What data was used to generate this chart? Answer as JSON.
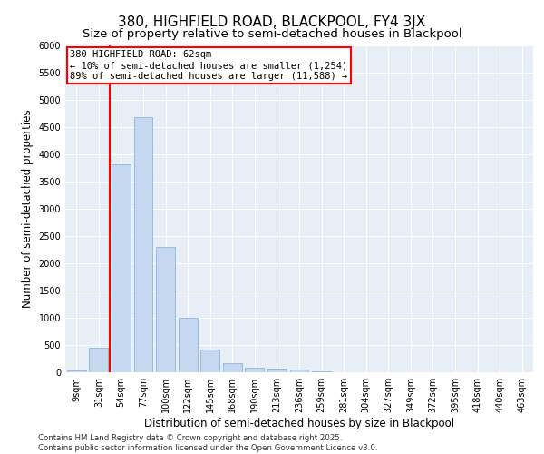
{
  "title1": "380, HIGHFIELD ROAD, BLACKPOOL, FY4 3JX",
  "title2": "Size of property relative to semi-detached houses in Blackpool",
  "xlabel": "Distribution of semi-detached houses by size in Blackpool",
  "ylabel": "Number of semi-detached properties",
  "categories": [
    "9sqm",
    "31sqm",
    "54sqm",
    "77sqm",
    "100sqm",
    "122sqm",
    "145sqm",
    "168sqm",
    "190sqm",
    "213sqm",
    "236sqm",
    "259sqm",
    "281sqm",
    "304sqm",
    "327sqm",
    "349sqm",
    "372sqm",
    "395sqm",
    "418sqm",
    "440sqm",
    "463sqm"
  ],
  "values": [
    30,
    450,
    3820,
    4680,
    2300,
    1000,
    420,
    175,
    90,
    65,
    55,
    10,
    0,
    0,
    0,
    0,
    0,
    0,
    0,
    0,
    0
  ],
  "bar_color": "#c5d8f0",
  "bar_edge_color": "#7bafd4",
  "vline_color": "red",
  "vline_pos": 1.5,
  "annotation_text": "380 HIGHFIELD ROAD: 62sqm\n← 10% of semi-detached houses are smaller (1,254)\n89% of semi-detached houses are larger (11,588) →",
  "annotation_box_color": "white",
  "annotation_box_edge_color": "red",
  "footnote": "Contains HM Land Registry data © Crown copyright and database right 2025.\nContains public sector information licensed under the Open Government Licence v3.0.",
  "ylim": [
    0,
    6000
  ],
  "yticks": [
    0,
    500,
    1000,
    1500,
    2000,
    2500,
    3000,
    3500,
    4000,
    4500,
    5000,
    5500,
    6000
  ],
  "background_color": "#e8eef5",
  "title_fontsize": 11,
  "subtitle_fontsize": 9.5,
  "tick_fontsize": 7,
  "ylabel_fontsize": 8.5,
  "xlabel_fontsize": 8.5,
  "annotation_fontsize": 7.5,
  "footnote_fontsize": 6.2
}
